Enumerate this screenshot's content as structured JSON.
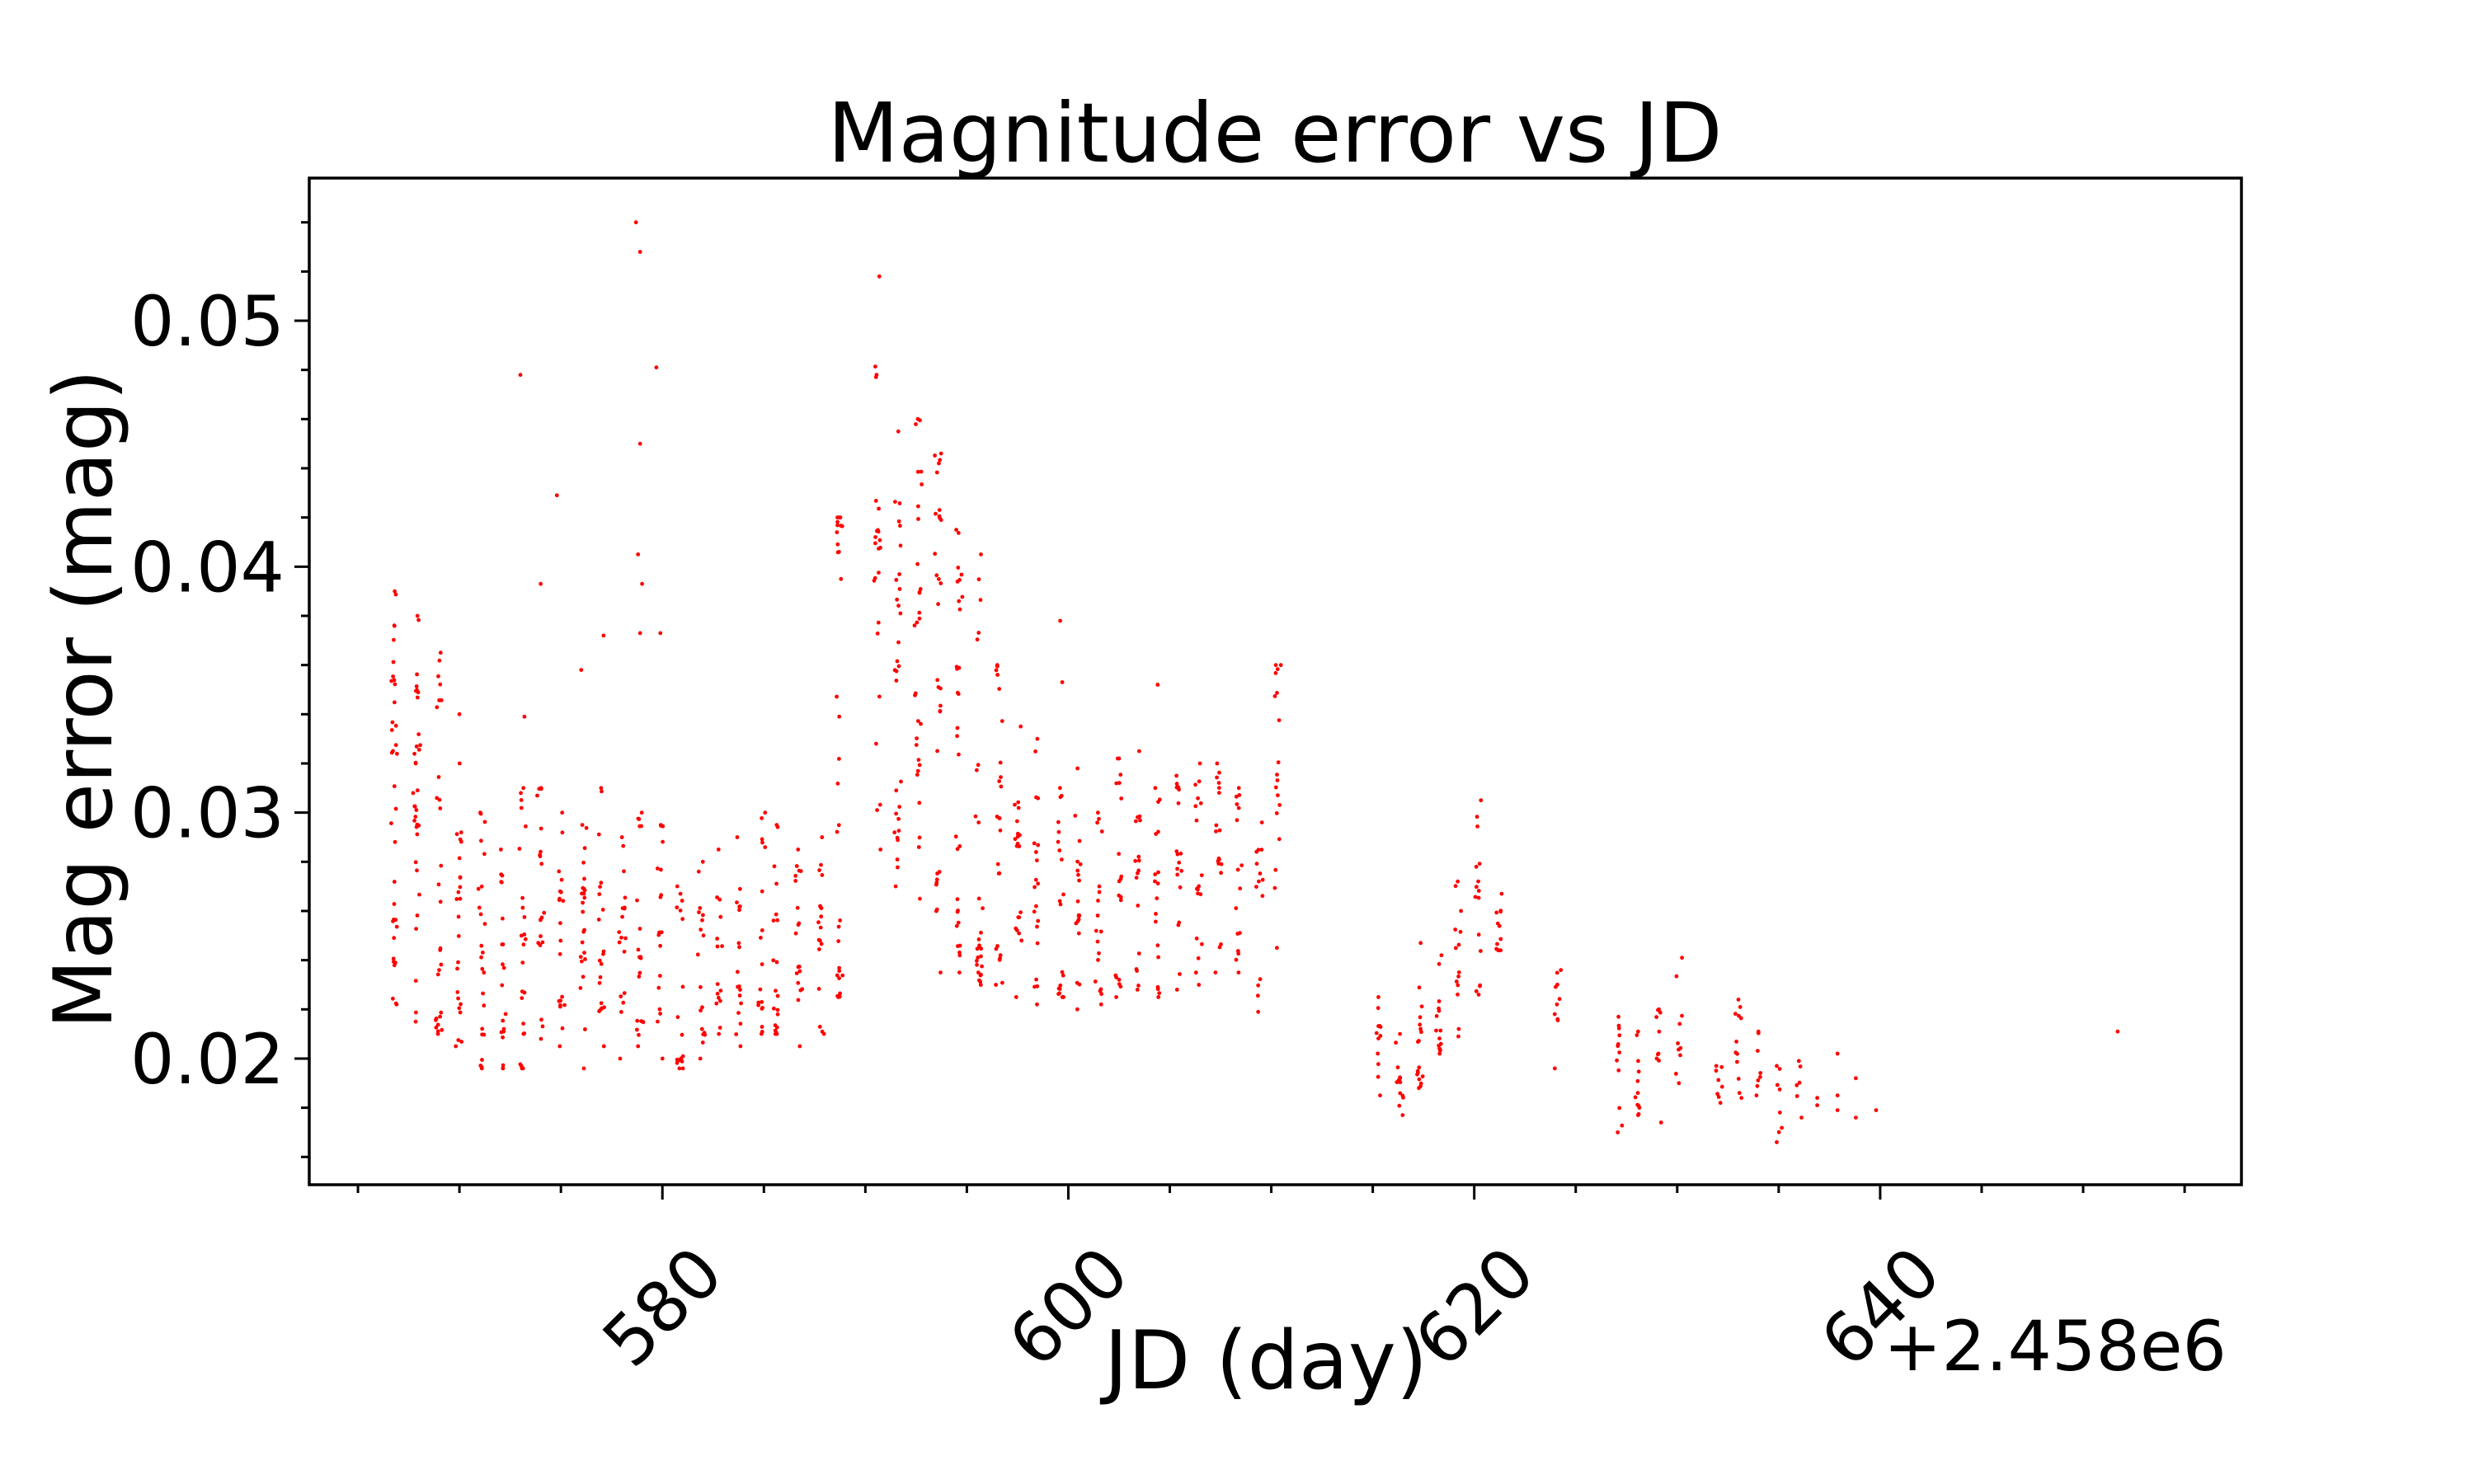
{
  "figure": {
    "background": "#ffffff",
    "title": "Magnitude error vs JD",
    "xlabel": "JD (day)",
    "ylabel": "Mag error (mag)",
    "x_offset_label": "+2.458e6"
  },
  "chart_data": {
    "type": "scatter",
    "title": "Magnitude error vs JD",
    "xlabel": "JD (day)",
    "ylabel": "Mag error (mag)",
    "x_offset_label": "+2.458e6",
    "xlim": [
      562.6,
      657.8
    ],
    "ylim": [
      0.01487,
      0.0558
    ],
    "x_major_ticks": [
      580,
      600,
      620,
      640
    ],
    "x_major_tick_labels": [
      "580",
      "600",
      "620",
      "640"
    ],
    "x_minor_tick_start": 565,
    "x_minor_tick_step": 5,
    "y_major_ticks": [
      0.02,
      0.03,
      0.04,
      0.05
    ],
    "y_major_tick_labels": [
      "0.02",
      "0.03",
      "0.04",
      "0.05"
    ],
    "y_minor_tick_start": 0.016,
    "y_minor_tick_step": 0.002,
    "x_tick_label_rotation_deg": 45,
    "grid": false,
    "legend": false,
    "marker_color": "#ff0000",
    "marker_radius_px": 2.4,
    "note": "Dense nightly vertical strips approximated as clusters: [jd_center(+2.458e6 offset), n_points, mag_min, mag_max, low_bias]. Explicit sparse points/outliers in points[] as [jd, mag].",
    "clusters": [
      [
        566.8,
        36,
        0.0222,
        0.039,
        1.3
      ],
      [
        567.9,
        34,
        0.0215,
        0.038,
        1.2
      ],
      [
        569.0,
        28,
        0.021,
        0.0365,
        1.3
      ],
      [
        570.0,
        24,
        0.0205,
        0.032,
        1.2
      ],
      [
        571.1,
        24,
        0.0196,
        0.03,
        1.1
      ],
      [
        572.1,
        20,
        0.0196,
        0.0285,
        1.1
      ],
      [
        573.1,
        24,
        0.0196,
        0.031,
        1.2
      ],
      [
        574.0,
        20,
        0.0208,
        0.031,
        1.1
      ],
      [
        575.0,
        20,
        0.0205,
        0.03,
        1.1
      ],
      [
        576.1,
        24,
        0.0196,
        0.0295,
        1.1
      ],
      [
        577.0,
        20,
        0.0205,
        0.031,
        1.1
      ],
      [
        578.0,
        18,
        0.02,
        0.029,
        1.1
      ],
      [
        578.9,
        20,
        0.0205,
        0.03,
        1.1
      ],
      [
        579.9,
        18,
        0.02,
        0.0295,
        1.1
      ],
      [
        580.9,
        18,
        0.0196,
        0.027,
        1.1
      ],
      [
        581.9,
        18,
        0.02,
        0.028,
        1.1
      ],
      [
        582.8,
        15,
        0.021,
        0.0285,
        1.1
      ],
      [
        583.8,
        18,
        0.0205,
        0.029,
        1.1
      ],
      [
        584.9,
        18,
        0.021,
        0.03,
        1.1
      ],
      [
        585.6,
        20,
        0.021,
        0.0295,
        1.2
      ],
      [
        586.7,
        20,
        0.0205,
        0.0285,
        1.1
      ],
      [
        587.8,
        18,
        0.021,
        0.029,
        1.1
      ],
      [
        588.7,
        26,
        0.0225,
        0.042,
        1.4
      ],
      [
        590.6,
        24,
        0.0285,
        0.0518,
        1.0
      ],
      [
        591.6,
        30,
        0.027,
        0.0455,
        1.0
      ],
      [
        592.6,
        30,
        0.0265,
        0.046,
        1.0
      ],
      [
        593.6,
        30,
        0.0235,
        0.0446,
        1.0
      ],
      [
        594.6,
        30,
        0.0235,
        0.0415,
        1.1
      ],
      [
        595.6,
        28,
        0.023,
        0.0405,
        1.1
      ],
      [
        596.6,
        24,
        0.023,
        0.036,
        1.1
      ],
      [
        597.5,
        20,
        0.0225,
        0.0335,
        1.1
      ],
      [
        598.4,
        20,
        0.0222,
        0.033,
        1.1
      ],
      [
        599.6,
        20,
        0.0225,
        0.031,
        1.1
      ],
      [
        600.5,
        20,
        0.022,
        0.0318,
        1.1
      ],
      [
        601.5,
        18,
        0.0222,
        0.03,
        1.1
      ],
      [
        602.5,
        18,
        0.0225,
        0.0322,
        1.1
      ],
      [
        603.4,
        18,
        0.0228,
        0.0325,
        1.1
      ],
      [
        604.4,
        18,
        0.0225,
        0.031,
        1.1
      ],
      [
        605.4,
        18,
        0.0228,
        0.0315,
        1.1
      ],
      [
        606.4,
        18,
        0.023,
        0.032,
        1.1
      ],
      [
        607.4,
        18,
        0.0235,
        0.032,
        1.1
      ],
      [
        608.4,
        16,
        0.0235,
        0.031,
        1.1
      ],
      [
        609.4,
        14,
        0.0219,
        0.0296,
        1.1
      ],
      [
        610.3,
        18,
        0.0245,
        0.036,
        1.0
      ],
      [
        615.3,
        12,
        0.0185,
        0.0225,
        1.0
      ],
      [
        616.3,
        14,
        0.0177,
        0.021,
        1.0
      ],
      [
        617.3,
        18,
        0.0188,
        0.0247,
        1.2
      ],
      [
        618.3,
        15,
        0.0202,
        0.0242,
        1.1
      ],
      [
        619.2,
        14,
        0.0209,
        0.0272,
        1.1
      ],
      [
        620.2,
        16,
        0.0226,
        0.0305,
        1.0
      ],
      [
        621.2,
        12,
        0.0244,
        0.0267,
        1.0
      ],
      [
        624.1,
        10,
        0.0196,
        0.0236,
        1.0
      ],
      [
        627.1,
        12,
        0.017,
        0.0217,
        1.0
      ],
      [
        628.1,
        12,
        0.0177,
        0.0211,
        1.0
      ],
      [
        629.1,
        10,
        0.0174,
        0.022,
        1.0
      ],
      [
        630.1,
        10,
        0.019,
        0.0241,
        1.1
      ],
      [
        632.1,
        8,
        0.0182,
        0.0197,
        1.0
      ],
      [
        633.0,
        12,
        0.0184,
        0.0224,
        1.0
      ],
      [
        634.0,
        8,
        0.0185,
        0.0211,
        1.0
      ],
      [
        635.0,
        8,
        0.0166,
        0.0197,
        1.0
      ],
      [
        636.0,
        6,
        0.0176,
        0.0199,
        1.0
      ]
    ],
    "points": [
      [
        570.0,
        0.034
      ],
      [
        573.0,
        0.0478
      ],
      [
        573.2,
        0.0339
      ],
      [
        574.0,
        0.0393
      ],
      [
        574.8,
        0.0429
      ],
      [
        576.0,
        0.0358
      ],
      [
        577.1,
        0.0372
      ],
      [
        578.7,
        0.054
      ],
      [
        578.9,
        0.0528
      ],
      [
        578.9,
        0.045
      ],
      [
        578.8,
        0.0405
      ],
      [
        579.0,
        0.0393
      ],
      [
        578.9,
        0.0373
      ],
      [
        579.7,
        0.0481
      ],
      [
        579.9,
        0.0373
      ],
      [
        588.7,
        0.042
      ],
      [
        588.6,
        0.0414
      ],
      [
        588.7,
        0.0406
      ],
      [
        588.8,
        0.0395
      ],
      [
        599.6,
        0.0378
      ],
      [
        599.7,
        0.0353
      ],
      [
        602.5,
        0.0322
      ],
      [
        604.4,
        0.0352
      ],
      [
        636.9,
        0.0184
      ],
      [
        636.9,
        0.0181
      ],
      [
        637.9,
        0.0202
      ],
      [
        637.9,
        0.0185
      ],
      [
        637.9,
        0.0179
      ],
      [
        638.8,
        0.0192
      ],
      [
        638.8,
        0.0176
      ],
      [
        639.8,
        0.0179
      ],
      [
        651.7,
        0.0211
      ]
    ]
  }
}
